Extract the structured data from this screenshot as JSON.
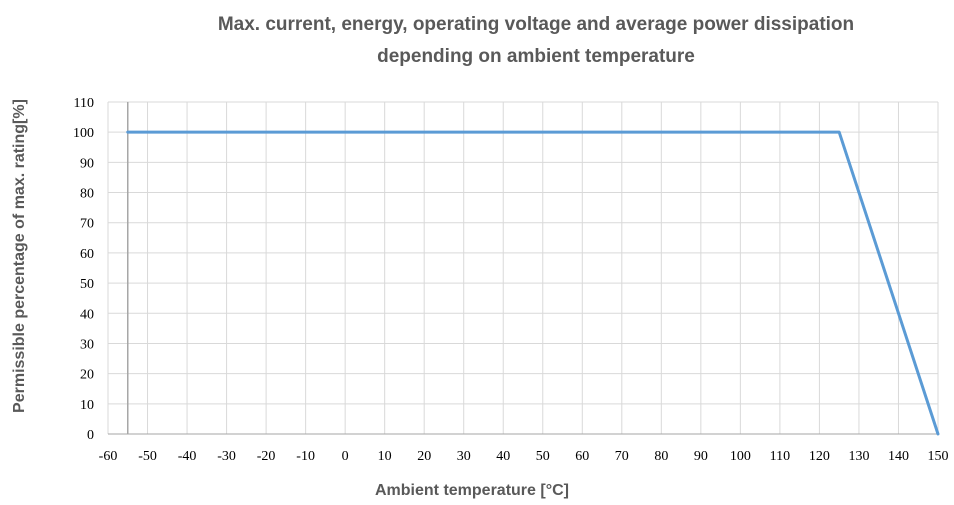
{
  "chart_data": {
    "type": "line",
    "title": "Max. current, energy, operating voltage and average power dissipation depending on ambient temperature",
    "title_lines": [
      "Max. current, energy, operating voltage and average power dissipation",
      "depending on ambient temperature"
    ],
    "xlabel": "Ambient temperature [°C]",
    "ylabel": "Permissible percentage of max. rating[%]",
    "xlim": [
      -60,
      150
    ],
    "ylim": [
      0,
      110
    ],
    "x_ticks": [
      -60,
      -50,
      -40,
      -30,
      -20,
      -10,
      0,
      10,
      20,
      30,
      40,
      50,
      60,
      70,
      80,
      90,
      100,
      110,
      120,
      130,
      140,
      150
    ],
    "y_ticks": [
      0,
      10,
      20,
      30,
      40,
      50,
      60,
      70,
      80,
      90,
      100,
      110
    ],
    "grid": true,
    "series": [
      {
        "x": [
          -55,
          125,
          150
        ],
        "y": [
          100,
          100,
          0
        ],
        "color": "#5b9bd5"
      }
    ],
    "vertical_marker_x": -55
  }
}
